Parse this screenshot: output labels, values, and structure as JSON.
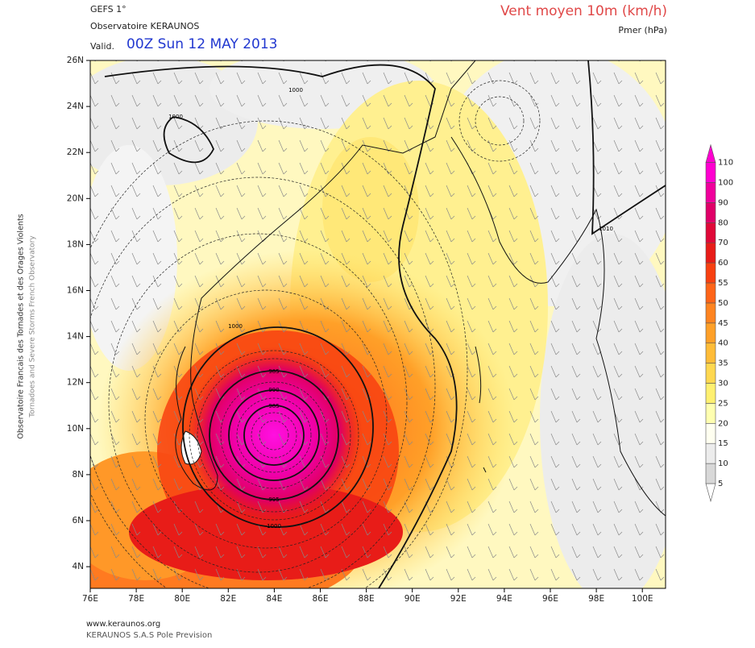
{
  "header": {
    "model": "GEFS 1°",
    "source": "Observatoire KERAUNOS",
    "valid_label": "Valid.",
    "valid_time": "00Z Sun 12 MAY 2013",
    "field": "Vent moyen 10m (km/h)",
    "contours": "Pmer (hPa)"
  },
  "side_text": [
    "Observatoire Francais des Tornades et des Orages Violents",
    "Tornadoes and Severe Storms French Observatory"
  ],
  "axes": {
    "lon_labels": [
      "76E",
      "78E",
      "80E",
      "82E",
      "84E",
      "86E",
      "88E",
      "90E",
      "92E",
      "94E",
      "96E",
      "98E",
      "100E"
    ],
    "lat_labels": [
      "26N",
      "24N",
      "22N",
      "20N",
      "18N",
      "16N",
      "14N",
      "12N",
      "10N",
      "8N",
      "6N",
      "4N"
    ]
  },
  "colorbar": {
    "levels": [
      5,
      10,
      15,
      20,
      25,
      30,
      35,
      40,
      45,
      50,
      55,
      60,
      70,
      80,
      90,
      100,
      110
    ],
    "colors": [
      "#d8d8d8",
      "#ececec",
      "#fffff0",
      "#ffffb0",
      "#fff070",
      "#ffd850",
      "#ffbc38",
      "#ffa028",
      "#ff8420",
      "#ff6418",
      "#f84010",
      "#e81c18",
      "#e00838",
      "#e00068",
      "#f0009c",
      "#ff00d0"
    ]
  },
  "contour_labels": [
    "1000",
    "1000",
    "1010",
    "1000",
    "985",
    "990",
    "985",
    "995",
    "1000"
  ],
  "footer": [
    "www.keraunos.org",
    "KERAUNOS S.A.S Pole Prevision"
  ]
}
